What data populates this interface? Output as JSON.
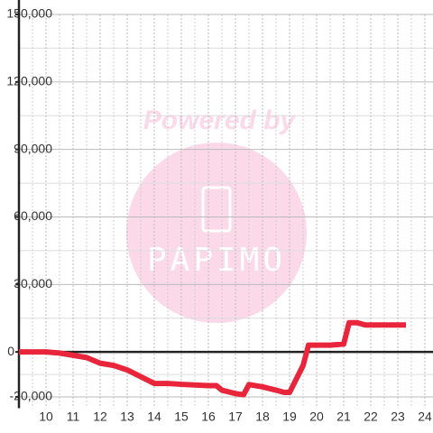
{
  "chart_data": {
    "type": "line",
    "x": [
      9,
      10,
      10.5,
      11,
      11.5,
      12,
      12.5,
      13,
      13.5,
      14,
      14.5,
      15,
      16,
      16.3,
      16.5,
      17,
      17.3,
      17.5,
      18,
      18.5,
      18.8,
      19,
      19.5,
      19.7,
      20,
      20.5,
      21,
      21.2,
      21.5,
      21.8,
      22,
      23.3
    ],
    "series": [
      {
        "color": "#e8253a",
        "values": [
          0,
          0,
          -500,
          -1500,
          -2500,
          -5000,
          -6000,
          -8000,
          -11000,
          -14000,
          -14000,
          -14400,
          -15000,
          -15000,
          -17000,
          -18500,
          -19000,
          -14500,
          -15500,
          -17000,
          -18000,
          -18000,
          -6000,
          3000,
          3000,
          3000,
          3500,
          13000,
          13000,
          12000,
          12000,
          12000
        ]
      }
    ],
    "xlim": [
      9,
      24.3
    ],
    "xticks": [
      10,
      11,
      12,
      13,
      14,
      15,
      16,
      17,
      18,
      19,
      20,
      21,
      22,
      23,
      24
    ],
    "ylim": [
      -25000,
      150000
    ],
    "yticks": [
      {
        "value": -20000,
        "label": "-20,000"
      },
      0,
      {
        "value": 30000,
        "label": "30,000"
      },
      {
        "value": 60000,
        "label": "60,000"
      },
      {
        "value": 90000,
        "label": "90,000"
      },
      {
        "value": 120000,
        "label": "120,000"
      },
      {
        "value": 150000,
        "label": "150,000"
      }
    ],
    "grid": true
  },
  "watermark": {
    "line1": "Powered by",
    "line2": "PAPIMO"
  }
}
